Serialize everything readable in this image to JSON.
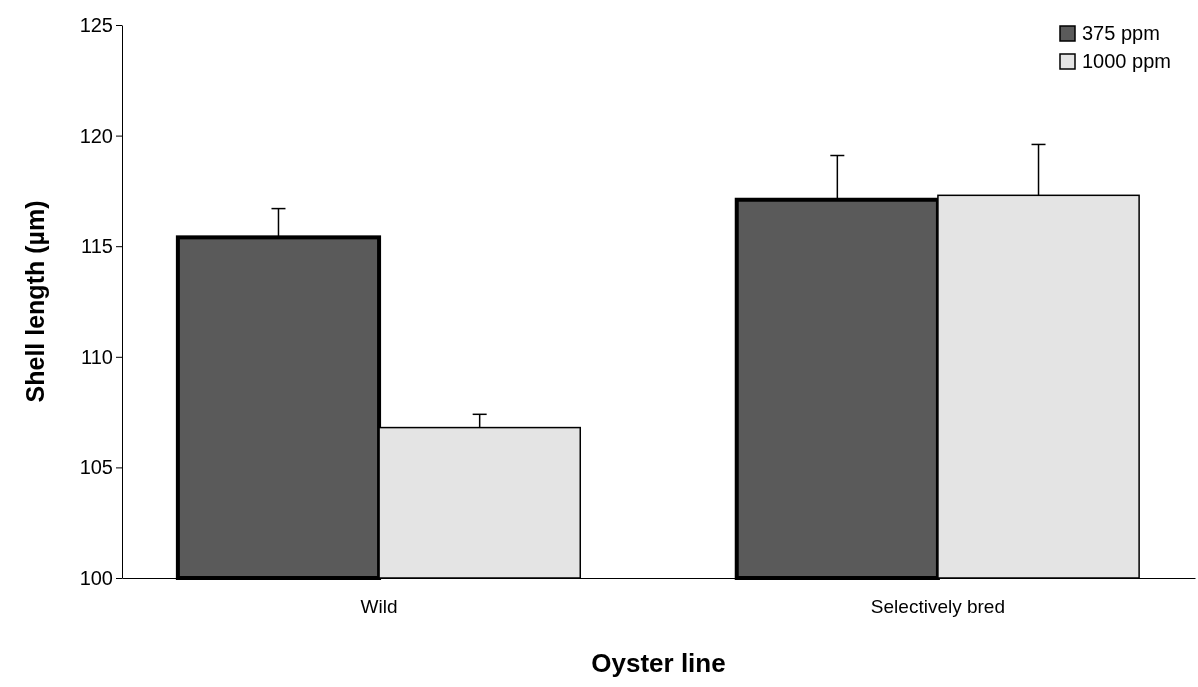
{
  "chart_data": {
    "type": "bar",
    "xlabel": "Oyster line",
    "ylabel": "Shell length (µm)",
    "categories": [
      "Wild",
      "Selectively bred"
    ],
    "series": [
      {
        "name": "375 ppm",
        "color": "#5a5a5a",
        "values": [
          115.4,
          117.1
        ],
        "errors": [
          [
            115.4,
            116.7
          ],
          [
            117.1,
            119.1
          ]
        ]
      },
      {
        "name": "1000 ppm",
        "color": "#e4e4e4",
        "values": [
          106.8,
          117.3
        ],
        "errors": [
          [
            106.8,
            107.4
          ],
          [
            117.3,
            119.6
          ]
        ]
      }
    ],
    "ylim": [
      100,
      125
    ],
    "yticks": [
      100,
      105,
      110,
      115,
      120,
      125
    ],
    "legend": "top right"
  }
}
